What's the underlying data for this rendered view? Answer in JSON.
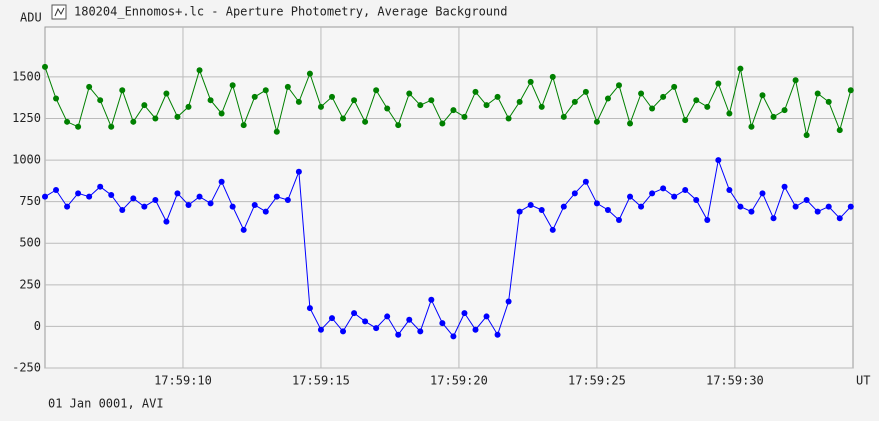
{
  "chart_data": {
    "type": "line",
    "title": "180204_Ennomos+.lc - Aperture Photometry, Average Background",
    "ylabel": "ADU",
    "xlabel": "UT",
    "footer": "01 Jan 0001, AVI",
    "xlim": [
      5,
      34.28
    ],
    "ylim": [
      -250,
      1800
    ],
    "xticks": [
      {
        "value": 10,
        "label": "17:59:10"
      },
      {
        "value": 15,
        "label": "17:59:15"
      },
      {
        "value": 20,
        "label": "17:59:20"
      },
      {
        "value": 25,
        "label": "17:59:25"
      },
      {
        "value": 30,
        "label": "17:59:30"
      }
    ],
    "yticks": [
      -250,
      0,
      250,
      500,
      750,
      1000,
      1250,
      1500
    ],
    "grid": true,
    "x": [
      5.0,
      5.4,
      5.8,
      6.2,
      6.6,
      7.0,
      7.4,
      7.8,
      8.2,
      8.6,
      9.0,
      9.4,
      9.8,
      10.2,
      10.6,
      11.0,
      11.4,
      11.8,
      12.2,
      12.6,
      13.0,
      13.4,
      13.8,
      14.2,
      14.6,
      15.0,
      15.4,
      15.8,
      16.2,
      16.6,
      17.0,
      17.4,
      17.8,
      18.2,
      18.6,
      19.0,
      19.4,
      19.8,
      20.2,
      20.6,
      21.0,
      21.4,
      21.8,
      22.2,
      22.6,
      23.0,
      23.4,
      23.8,
      24.2,
      24.6,
      25.0,
      25.4,
      25.8,
      26.2,
      26.6,
      27.0,
      27.4,
      27.8,
      28.2,
      28.6,
      29.0,
      29.4,
      29.8,
      30.2,
      30.6,
      31.0,
      31.4,
      31.8,
      32.2,
      32.6,
      33.0,
      33.4,
      33.8,
      34.2
    ],
    "series": [
      {
        "color": "#008000",
        "values": [
          1560,
          1370,
          1230,
          1200,
          1440,
          1360,
          1200,
          1420,
          1230,
          1330,
          1250,
          1400,
          1260,
          1320,
          1540,
          1360,
          1280,
          1450,
          1210,
          1380,
          1420,
          1170,
          1440,
          1350,
          1520,
          1320,
          1380,
          1250,
          1360,
          1230,
          1420,
          1310,
          1210,
          1400,
          1330,
          1360,
          1220,
          1300,
          1260,
          1410,
          1330,
          1380,
          1250,
          1350,
          1470,
          1320,
          1500,
          1260,
          1350,
          1410,
          1230,
          1370,
          1450,
          1220,
          1400,
          1310,
          1380,
          1440,
          1240,
          1360,
          1320,
          1460,
          1280,
          1550,
          1200,
          1390,
          1260,
          1300,
          1480,
          1150,
          1400,
          1350,
          1180,
          1420
        ]
      },
      {
        "color": "#0000ff",
        "values": [
          780,
          820,
          720,
          800,
          780,
          840,
          790,
          700,
          770,
          720,
          760,
          630,
          800,
          730,
          780,
          740,
          870,
          720,
          580,
          730,
          690,
          780,
          760,
          930,
          110,
          -20,
          50,
          -30,
          80,
          30,
          -10,
          60,
          -50,
          40,
          -30,
          160,
          20,
          -60,
          80,
          -20,
          60,
          -50,
          150,
          690,
          730,
          700,
          580,
          720,
          800,
          870,
          740,
          700,
          640,
          780,
          720,
          800,
          830,
          780,
          820,
          760,
          640,
          1000,
          820,
          720,
          690,
          800,
          650,
          840,
          720,
          760,
          690,
          720,
          650,
          720
        ]
      }
    ]
  }
}
